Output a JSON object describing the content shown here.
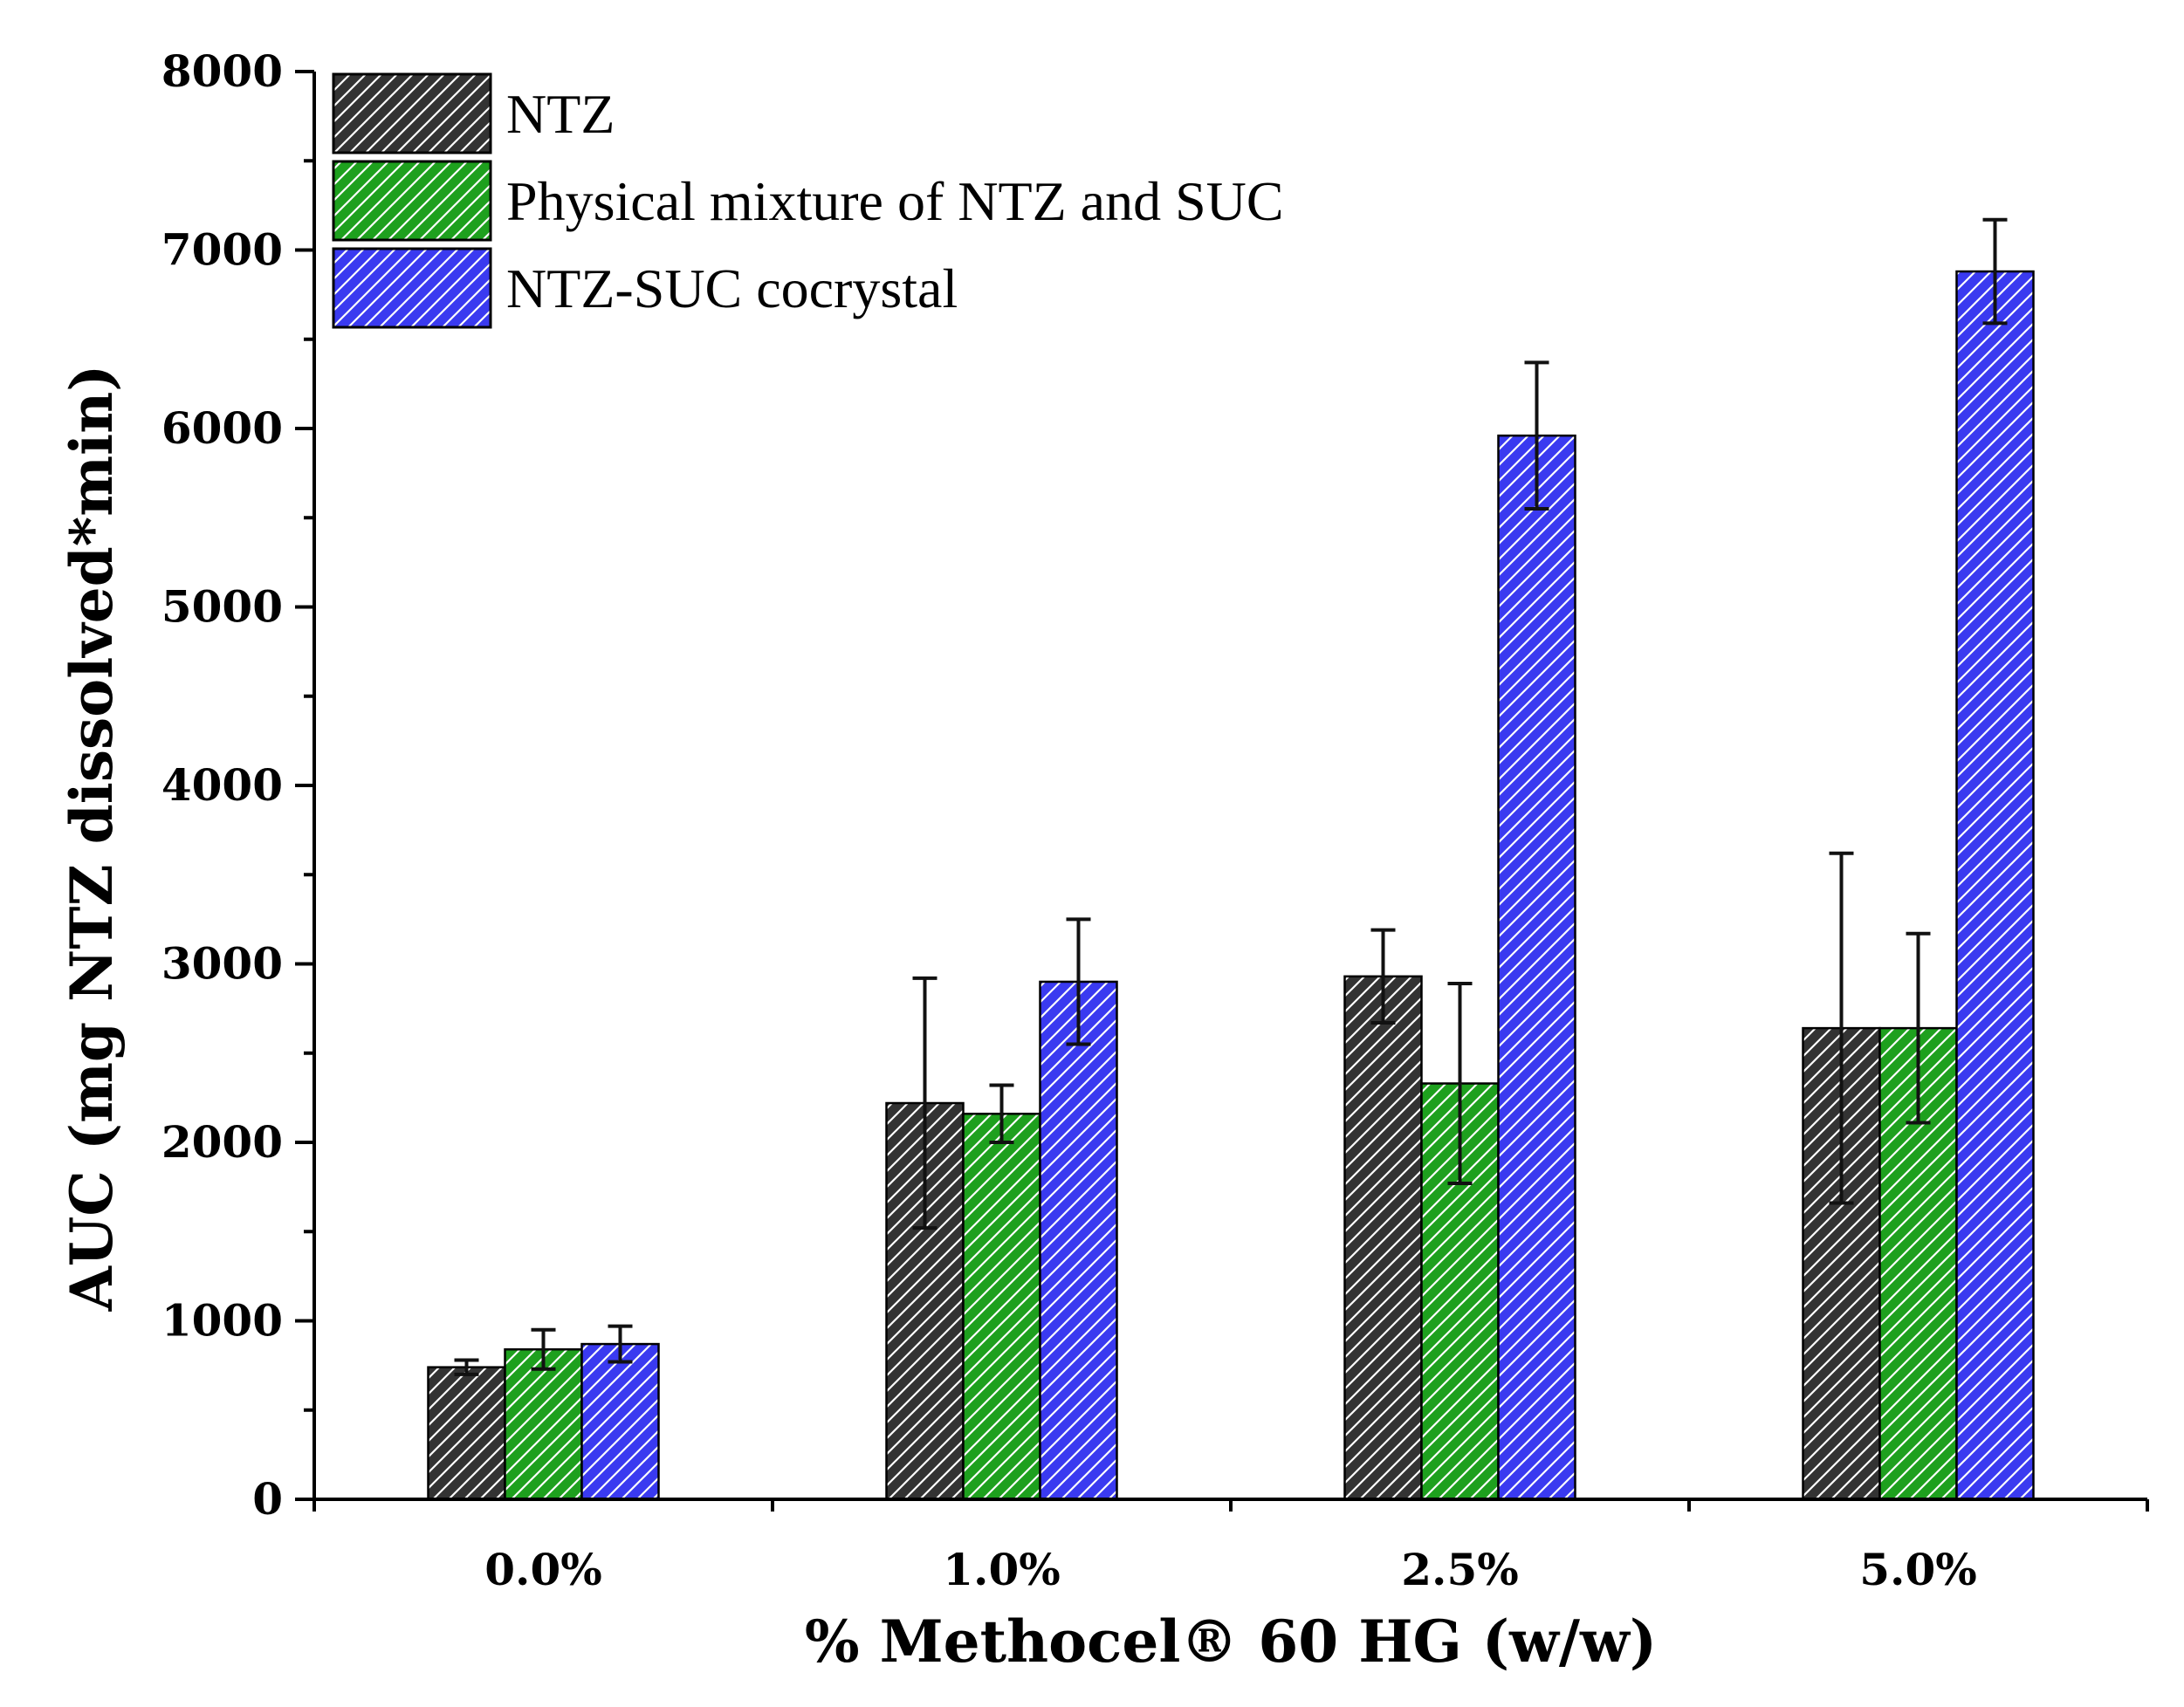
{
  "chart_data": {
    "type": "bar",
    "title": "",
    "xlabel": "% Methocel® 60 HG (w/w)",
    "ylabel": "AUC (mg NTZ dissolved*min)",
    "categories": [
      "0.0%",
      "1.0%",
      "2.5%",
      "5.0%"
    ],
    "ylim": [
      0,
      8000
    ],
    "yticks": [
      0,
      1000,
      2000,
      3000,
      4000,
      5000,
      6000,
      7000,
      8000
    ],
    "grid": false,
    "legend_position": "top-left",
    "series": [
      {
        "name": "NTZ",
        "color": "#333333",
        "values": [
          740,
          2220,
          2930,
          2640
        ],
        "errors": [
          40,
          700,
          260,
          980
        ]
      },
      {
        "name": "Physical mixture of NTZ and SUC",
        "color": "#1ea01e",
        "values": [
          840,
          2160,
          2330,
          2640
        ],
        "errors": [
          110,
          160,
          560,
          530
        ]
      },
      {
        "name": "NTZ-SUC cocrystal",
        "color": "#3a3af0",
        "values": [
          870,
          2900,
          5960,
          6880
        ],
        "errors": [
          100,
          350,
          410,
          290
        ]
      }
    ]
  }
}
